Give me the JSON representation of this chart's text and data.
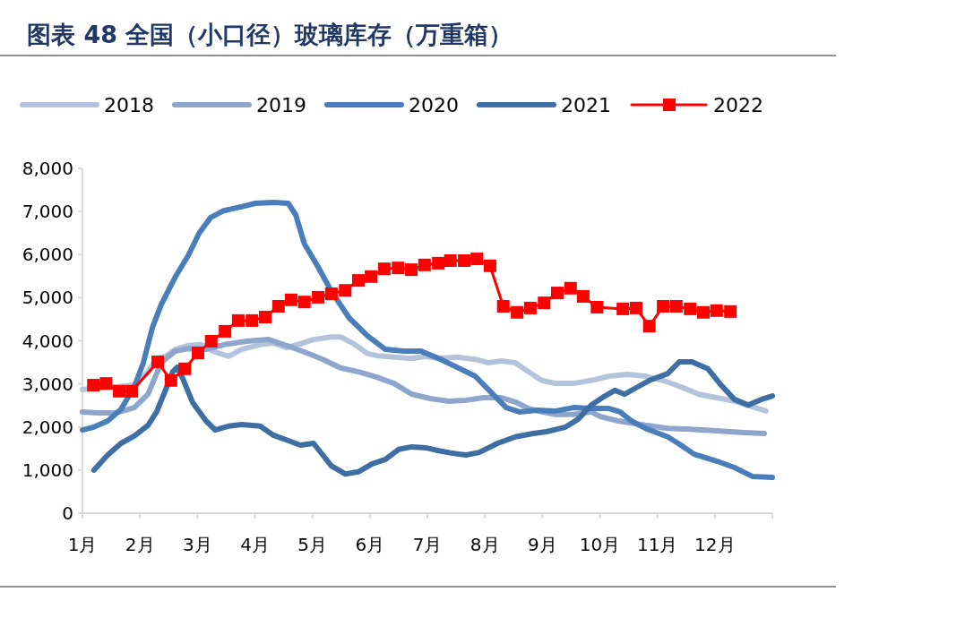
{
  "chart_data": {
    "type": "line",
    "title": "图表 48 全国（小口径）玻璃库存（万重箱）",
    "xlim": [
      1,
      13
    ],
    "xticks": [
      {
        "value": 1,
        "label": "1月"
      },
      {
        "value": 2,
        "label": "2月"
      },
      {
        "value": 3,
        "label": "3月"
      },
      {
        "value": 4,
        "label": "4月"
      },
      {
        "value": 5,
        "label": "5月"
      },
      {
        "value": 6,
        "label": "6月"
      },
      {
        "value": 7,
        "label": "7月"
      },
      {
        "value": 8,
        "label": "8月"
      },
      {
        "value": 9,
        "label": "9月"
      },
      {
        "value": 10,
        "label": "10月"
      },
      {
        "value": 11,
        "label": "11月"
      },
      {
        "value": 12,
        "label": "12月"
      },
      {
        "value": 13,
        "label": null
      }
    ],
    "ylim": [
      0,
      8000
    ],
    "yticks": [
      {
        "value": 0,
        "label": "0"
      },
      {
        "value": 1000,
        "label": "1,000"
      },
      {
        "value": 2000,
        "label": "2,000"
      },
      {
        "value": 3000,
        "label": "3,000"
      },
      {
        "value": 4000,
        "label": "4,000"
      },
      {
        "value": 5000,
        "label": "5,000"
      },
      {
        "value": 6000,
        "label": "6,000"
      },
      {
        "value": 7000,
        "label": "7,000"
      },
      {
        "value": 8000,
        "label": "8,000"
      }
    ],
    "grid": false,
    "legend": "top",
    "line_style": "solid",
    "series": [
      {
        "name": "2018",
        "color": "#b4c3dc",
        "marker": "none",
        "x": [
          1.0,
          1.28,
          1.59,
          1.9,
          2.14,
          2.29,
          2.45,
          2.61,
          2.84,
          3.07,
          3.31,
          3.54,
          3.77,
          4.09,
          4.32,
          4.55,
          4.79,
          5.02,
          5.33,
          5.49,
          5.72,
          5.96,
          6.11,
          6.42,
          6.73,
          6.97,
          7.2,
          7.51,
          7.83,
          8.06,
          8.29,
          8.53,
          8.76,
          8.99,
          9.23,
          9.54,
          9.85,
          10.16,
          10.48,
          10.79,
          11.1,
          11.41,
          11.72,
          12.03,
          12.34,
          12.89
        ],
        "values": [
          2870,
          2910,
          2930,
          2970,
          3280,
          3590,
          3640,
          3800,
          3890,
          3910,
          3740,
          3640,
          3800,
          3910,
          3950,
          3840,
          3930,
          4030,
          4090,
          4090,
          3930,
          3700,
          3660,
          3620,
          3590,
          3640,
          3590,
          3620,
          3570,
          3490,
          3530,
          3490,
          3280,
          3080,
          3010,
          3010,
          3080,
          3180,
          3220,
          3180,
          3080,
          2930,
          2760,
          2680,
          2600,
          2370
        ]
      },
      {
        "name": "2019",
        "color": "#8ea6cc",
        "marker": "none",
        "x": [
          1.0,
          1.28,
          1.59,
          1.9,
          2.14,
          2.37,
          2.61,
          2.84,
          3.15,
          3.46,
          3.85,
          4.24,
          4.55,
          4.86,
          5.18,
          5.49,
          5.8,
          6.11,
          6.42,
          6.73,
          7.05,
          7.36,
          7.67,
          7.98,
          8.29,
          8.53,
          8.76,
          8.99,
          9.23,
          9.54,
          9.85,
          10.01,
          10.32,
          10.79,
          11.18,
          11.57,
          12.03,
          12.5,
          12.86
        ],
        "values": [
          2350,
          2330,
          2330,
          2450,
          2760,
          3490,
          3760,
          3820,
          3800,
          3910,
          3990,
          4030,
          3890,
          3740,
          3570,
          3370,
          3280,
          3160,
          3010,
          2760,
          2660,
          2600,
          2620,
          2680,
          2680,
          2580,
          2430,
          2350,
          2290,
          2290,
          2350,
          2240,
          2140,
          2040,
          1970,
          1950,
          1910,
          1870,
          1850
        ]
      },
      {
        "name": "2020",
        "color": "#4a7ebb",
        "marker": "none",
        "x": [
          1.0,
          1.2,
          1.44,
          1.67,
          1.9,
          2.06,
          2.22,
          2.37,
          2.61,
          2.84,
          3.03,
          3.23,
          3.46,
          3.77,
          4.01,
          4.32,
          4.58,
          4.71,
          4.86,
          5.1,
          5.33,
          5.64,
          5.96,
          6.27,
          6.58,
          6.89,
          7.2,
          7.51,
          7.83,
          8.06,
          8.37,
          8.6,
          8.91,
          9.23,
          9.54,
          9.85,
          10.16,
          10.35,
          10.55,
          10.79,
          11.18,
          11.41,
          11.64,
          12.03,
          12.34,
          12.66,
          13.0
        ],
        "values": [
          1930,
          2000,
          2140,
          2410,
          2930,
          3490,
          4320,
          4840,
          5470,
          5980,
          6500,
          6860,
          7020,
          7110,
          7190,
          7210,
          7190,
          6920,
          6250,
          5710,
          5150,
          4530,
          4110,
          3800,
          3760,
          3760,
          3590,
          3390,
          3180,
          2870,
          2450,
          2350,
          2390,
          2370,
          2450,
          2430,
          2430,
          2350,
          2140,
          1970,
          1770,
          1580,
          1370,
          1210,
          1060,
          850,
          830
        ]
      },
      {
        "name": "2021",
        "color": "#3f6ea5",
        "marker": "none",
        "x": [
          1.2,
          1.44,
          1.67,
          1.9,
          2.14,
          2.29,
          2.45,
          2.57,
          2.65,
          2.76,
          2.92,
          3.15,
          3.31,
          3.54,
          3.77,
          4.09,
          4.32,
          4.55,
          4.79,
          5.02,
          5.18,
          5.33,
          5.57,
          5.8,
          6.03,
          6.27,
          6.5,
          6.73,
          6.97,
          7.2,
          7.44,
          7.67,
          7.9,
          8.22,
          8.53,
          8.84,
          9.07,
          9.39,
          9.62,
          9.85,
          10.09,
          10.26,
          10.43,
          10.63,
          10.86,
          11.18,
          11.38,
          11.6,
          11.88,
          12.11,
          12.34,
          12.58,
          12.81,
          13.0
        ],
        "values": [
          1000,
          1350,
          1620,
          1790,
          2040,
          2350,
          2870,
          3280,
          3390,
          3080,
          2560,
          2140,
          1930,
          2020,
          2060,
          2020,
          1810,
          1700,
          1580,
          1620,
          1350,
          1100,
          910,
          960,
          1140,
          1250,
          1480,
          1540,
          1520,
          1450,
          1390,
          1350,
          1410,
          1620,
          1770,
          1850,
          1890,
          1990,
          2180,
          2510,
          2720,
          2850,
          2760,
          2910,
          3080,
          3240,
          3510,
          3510,
          3350,
          2970,
          2640,
          2510,
          2640,
          2720
        ]
      },
      {
        "name": "2022",
        "color": "#ff0000",
        "marker": "square",
        "x": [
          1.19,
          1.41,
          1.64,
          1.86,
          2.31,
          2.54,
          2.78,
          3.01,
          3.24,
          3.48,
          3.71,
          3.95,
          4.18,
          4.41,
          4.63,
          4.86,
          5.1,
          5.33,
          5.57,
          5.8,
          6.02,
          6.25,
          6.49,
          6.72,
          6.95,
          7.19,
          7.4,
          7.64,
          7.86,
          8.09,
          8.32,
          8.56,
          8.79,
          9.03,
          9.26,
          9.49,
          9.71,
          9.95,
          10.4,
          10.63,
          10.86,
          11.1,
          11.33,
          11.57,
          11.8,
          12.03,
          12.27
        ],
        "values": [
          2970,
          3010,
          2830,
          2830,
          3510,
          3080,
          3350,
          3720,
          3990,
          4220,
          4470,
          4470,
          4550,
          4800,
          4950,
          4900,
          5010,
          5090,
          5170,
          5400,
          5490,
          5670,
          5690,
          5650,
          5760,
          5800,
          5860,
          5860,
          5900,
          5740,
          4800,
          4660,
          4760,
          4880,
          5110,
          5220,
          5030,
          4780,
          4740,
          4760,
          4340,
          4800,
          4800,
          4740,
          4660,
          4700,
          4680
        ]
      }
    ]
  }
}
